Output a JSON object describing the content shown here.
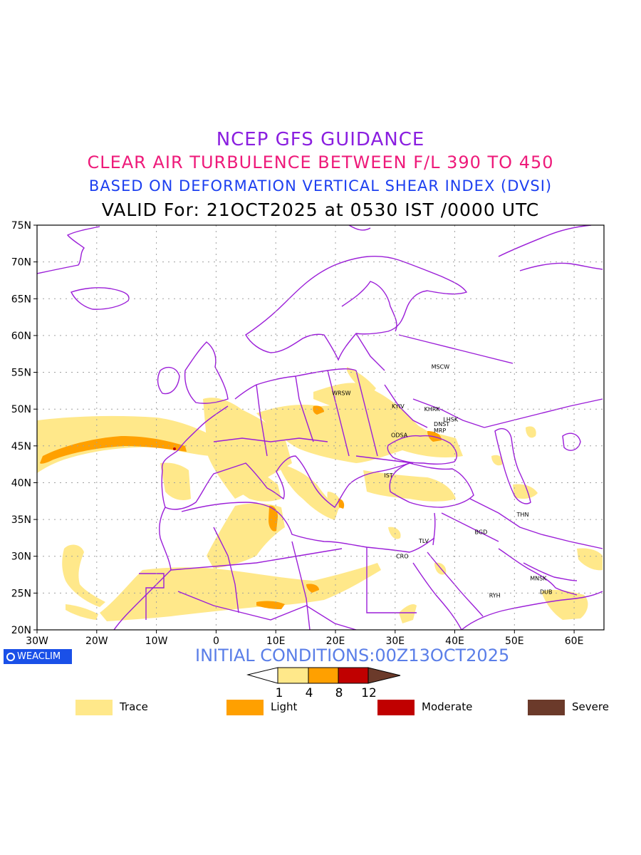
{
  "header": {
    "line1": "NCEP GFS GUIDANCE",
    "line2": "CLEAR AIR TURBULENCE BETWEEN F/L 390 TO 450",
    "line3": "BASED ON DEFORMATION VERTICAL SHEAR INDEX (DVSI)",
    "line4": "VALID For: 21OCT2025 at 0530 IST /0000 UTC"
  },
  "map": {
    "lon_range": [
      -30,
      65
    ],
    "lat_range": [
      20,
      75
    ],
    "lat_ticks": [
      "75N",
      "70N",
      "65N",
      "60N",
      "55N",
      "50N",
      "45N",
      "40N",
      "35N",
      "30N",
      "25N",
      "20N"
    ],
    "lon_ticks": [
      "30W",
      "20W",
      "10W",
      "0",
      "10E",
      "20E",
      "30E",
      "40E",
      "50E",
      "60E"
    ],
    "grid": true,
    "coast_color": "#9b1ed8",
    "cities": [
      {
        "code": "MSCW",
        "lon": 37.6,
        "lat": 55.8
      },
      {
        "code": "WRSW",
        "lon": 21.0,
        "lat": 52.2
      },
      {
        "code": "KYIV",
        "lon": 30.5,
        "lat": 50.4
      },
      {
        "code": "KHRK",
        "lon": 36.2,
        "lat": 50.0
      },
      {
        "code": "LHSK",
        "lon": 39.3,
        "lat": 48.6
      },
      {
        "code": "DNST",
        "lon": 37.8,
        "lat": 48.0
      },
      {
        "code": "MRP",
        "lon": 37.5,
        "lat": 47.1
      },
      {
        "code": "ODSA",
        "lon": 30.7,
        "lat": 46.5
      },
      {
        "code": "IST",
        "lon": 28.9,
        "lat": 41.0
      },
      {
        "code": "THN",
        "lon": 51.4,
        "lat": 35.7
      },
      {
        "code": "BGD",
        "lon": 44.4,
        "lat": 33.3
      },
      {
        "code": "TLV",
        "lon": 34.8,
        "lat": 32.1
      },
      {
        "code": "CRO",
        "lon": 31.2,
        "lat": 30.0
      },
      {
        "code": "MNSK",
        "lon": 54.0,
        "lat": 27.0
      },
      {
        "code": "DUB",
        "lon": 55.3,
        "lat": 25.2
      },
      {
        "code": "RYH",
        "lon": 46.7,
        "lat": 24.7
      }
    ]
  },
  "footer": {
    "brand": "WEACLIM",
    "initial_conditions": "INITIAL CONDITIONS:00Z13OCT2025"
  },
  "colorbar": {
    "bounds": [
      "1",
      "4",
      "8",
      "12"
    ],
    "colors": [
      "#ffffff",
      "#ffe88a",
      "#ffa000",
      "#c00000",
      "#6b3a2a"
    ]
  },
  "legend": [
    {
      "label": "Trace",
      "color": "#ffe88a"
    },
    {
      "label": "Light",
      "color": "#ffa000"
    },
    {
      "label": "Moderate",
      "color": "#c00000"
    },
    {
      "label": "Severe",
      "color": "#6b3a2a"
    }
  ]
}
